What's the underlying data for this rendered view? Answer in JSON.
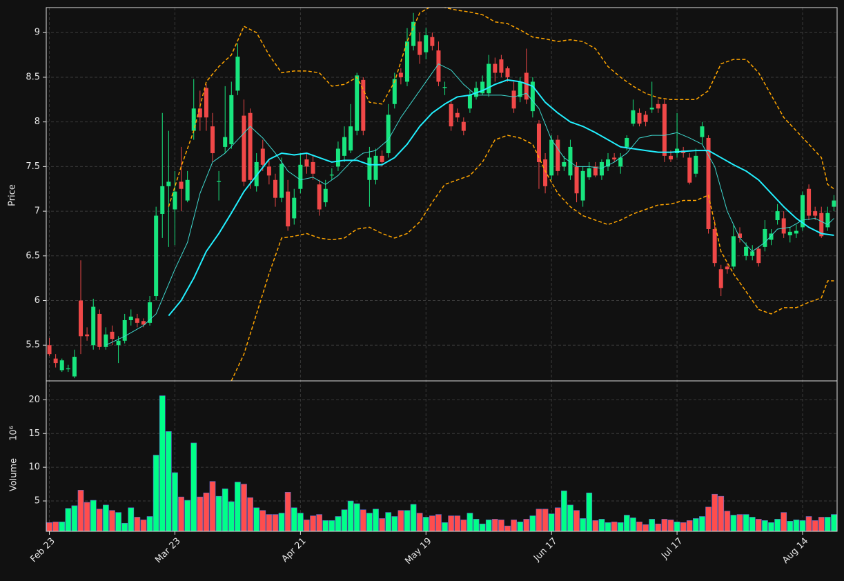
{
  "chart_data": [
    {
      "type": "candlestick",
      "ylabel": "Price",
      "xlim": [
        -0.5,
        125.5
      ],
      "xticks": [
        0,
        20,
        40,
        60,
        80,
        100,
        120
      ],
      "ylim": [
        5.1,
        9.28
      ],
      "yticks": [
        5.5,
        6.0,
        6.5,
        7.0,
        7.5,
        8.0,
        8.5,
        9.0
      ],
      "grid": true,
      "up_color": "#18e57e",
      "down_color": "#f04848",
      "open": [
        5.5,
        5.35,
        5.22,
        5.23,
        5.15,
        6.0,
        5.62,
        5.5,
        5.85,
        5.48,
        5.65,
        5.5,
        5.55,
        5.78,
        5.8,
        5.77,
        5.75,
        6.05,
        6.97,
        7.28,
        7.02,
        7.33,
        7.12,
        7.9,
        8.15,
        8.38,
        7.95,
        7.33,
        7.72,
        7.75,
        8.35,
        8.07,
        8.1,
        7.28,
        7.7,
        7.5,
        7.35,
        7.15,
        7.22,
        6.92,
        7.25,
        7.58,
        7.55,
        7.3,
        7.1,
        7.4,
        7.5,
        7.62,
        7.68,
        7.9,
        8.47,
        7.35,
        7.35,
        7.62,
        7.65,
        8.2,
        8.55,
        8.45,
        8.85,
        8.9,
        8.78,
        8.95,
        8.8,
        8.38,
        8.2,
        8.1,
        8.0,
        8.15,
        8.28,
        8.32,
        8.32,
        8.65,
        8.7,
        8.6,
        8.35,
        8.28,
        8.55,
        8.12,
        7.98,
        7.58,
        7.4,
        7.8,
        7.5,
        7.4,
        7.5,
        7.12,
        7.38,
        7.5,
        7.4,
        7.5,
        7.6,
        7.5,
        7.72,
        7.98,
        8.1,
        8.08,
        8.14,
        8.2,
        8.2,
        7.62,
        7.65,
        7.68,
        7.6,
        7.42,
        7.83,
        7.82,
        6.8,
        6.35,
        6.38,
        6.38,
        6.75,
        6.5,
        6.5,
        6.58,
        6.6,
        6.68,
        6.9,
        6.92,
        6.73,
        6.75,
        6.82,
        7.25,
        7.0,
        6.98,
        6.82,
        7.05
      ],
      "high": [
        5.58,
        5.4,
        5.35,
        5.28,
        5.45,
        6.45,
        5.7,
        6.02,
        5.9,
        5.7,
        5.72,
        5.6,
        5.85,
        5.9,
        5.85,
        5.8,
        6.05,
        7.05,
        8.1,
        7.9,
        7.45,
        7.72,
        7.45,
        8.48,
        8.35,
        8.42,
        8.1,
        7.45,
        8.4,
        8.45,
        8.88,
        8.25,
        8.15,
        7.65,
        7.8,
        7.58,
        7.42,
        7.6,
        7.35,
        7.25,
        7.65,
        7.65,
        7.62,
        7.35,
        7.35,
        7.48,
        7.78,
        7.95,
        8.2,
        8.55,
        8.5,
        7.72,
        7.7,
        7.68,
        8.2,
        8.55,
        8.6,
        9.05,
        9.22,
        9.0,
        9.05,
        9.0,
        8.9,
        8.45,
        8.25,
        8.15,
        8.05,
        8.35,
        8.45,
        8.52,
        8.75,
        8.72,
        8.75,
        8.62,
        8.45,
        8.5,
        8.82,
        8.5,
        8.02,
        7.65,
        7.85,
        7.85,
        7.62,
        7.8,
        7.55,
        7.5,
        7.55,
        7.55,
        7.58,
        7.65,
        7.65,
        7.65,
        7.85,
        8.25,
        8.15,
        8.12,
        8.45,
        8.25,
        8.25,
        7.68,
        8.1,
        7.72,
        7.65,
        7.7,
        8.0,
        7.85,
        6.9,
        6.4,
        6.42,
        6.85,
        6.82,
        6.65,
        6.62,
        6.6,
        6.9,
        6.8,
        7.08,
        7.0,
        6.82,
        6.85,
        7.22,
        7.3,
        7.05,
        7.05,
        7.05,
        7.18
      ],
      "low": [
        5.38,
        5.25,
        5.2,
        5.2,
        5.13,
        5.4,
        5.55,
        5.45,
        5.45,
        5.45,
        5.5,
        5.3,
        5.52,
        5.72,
        5.7,
        5.7,
        5.72,
        6.0,
        6.7,
        6.6,
        6.62,
        7.0,
        7.1,
        7.8,
        7.9,
        7.9,
        7.55,
        7.12,
        7.65,
        7.7,
        8.3,
        7.28,
        7.25,
        7.22,
        7.45,
        7.3,
        7.05,
        7.1,
        6.78,
        6.85,
        7.2,
        7.42,
        7.35,
        6.95,
        7.05,
        7.35,
        7.45,
        7.55,
        7.65,
        7.85,
        7.85,
        7.05,
        7.3,
        7.5,
        7.6,
        8.15,
        8.42,
        8.4,
        8.8,
        8.65,
        8.7,
        8.8,
        8.4,
        8.3,
        7.9,
        8.0,
        7.85,
        8.1,
        8.25,
        8.3,
        8.28,
        8.45,
        8.5,
        8.45,
        8.1,
        8.22,
        8.2,
        8.05,
        7.25,
        7.2,
        7.35,
        7.4,
        7.45,
        7.35,
        7.1,
        7.05,
        7.35,
        7.38,
        7.35,
        7.45,
        7.55,
        7.42,
        7.68,
        7.95,
        7.95,
        7.95,
        8.1,
        8.1,
        7.55,
        7.55,
        7.6,
        7.6,
        7.3,
        7.38,
        7.75,
        6.75,
        6.38,
        6.05,
        6.3,
        6.35,
        6.65,
        6.45,
        6.45,
        6.38,
        6.55,
        6.62,
        6.85,
        6.7,
        6.65,
        6.7,
        6.78,
        6.9,
        6.9,
        6.7,
        6.78,
        7.0
      ],
      "close": [
        5.4,
        5.3,
        5.33,
        5.24,
        5.37,
        5.6,
        5.6,
        5.93,
        5.48,
        5.62,
        5.57,
        5.55,
        5.78,
        5.82,
        5.75,
        5.73,
        5.98,
        6.95,
        7.28,
        7.33,
        7.22,
        7.25,
        7.35,
        8.15,
        8.05,
        8.05,
        7.65,
        7.34,
        7.83,
        8.3,
        8.73,
        7.33,
        7.35,
        7.55,
        7.52,
        7.4,
        7.15,
        7.53,
        6.83,
        7.15,
        7.52,
        7.5,
        7.42,
        7.02,
        7.25,
        7.41,
        7.7,
        7.83,
        7.95,
        8.52,
        7.9,
        7.6,
        7.62,
        7.55,
        8.08,
        8.48,
        8.5,
        8.9,
        9.12,
        8.75,
        8.97,
        8.85,
        8.45,
        8.39,
        7.95,
        8.05,
        7.9,
        8.3,
        8.38,
        8.45,
        8.65,
        8.55,
        8.55,
        8.5,
        8.15,
        8.45,
        8.25,
        8.45,
        7.55,
        7.28,
        7.8,
        7.45,
        7.55,
        7.72,
        7.2,
        7.45,
        7.48,
        7.4,
        7.55,
        7.58,
        7.58,
        7.6,
        7.82,
        8.13,
        7.98,
        8.0,
        8.16,
        8.15,
        7.62,
        7.58,
        7.7,
        7.65,
        7.32,
        7.62,
        7.95,
        6.8,
        6.42,
        6.14,
        6.35,
        6.72,
        6.7,
        6.6,
        6.55,
        6.42,
        6.8,
        6.75,
        7.0,
        6.75,
        6.77,
        6.78,
        7.18,
        6.95,
        6.95,
        6.72,
        6.98,
        7.12
      ],
      "lines": [
        {
          "color": "#3fd9d0",
          "width": 1,
          "dashed": false,
          "x": [
            9,
            12,
            15,
            17,
            20,
            22,
            24,
            26,
            28,
            30,
            32,
            34,
            36,
            38,
            40,
            42,
            44,
            46,
            48,
            50,
            52,
            54,
            56,
            58,
            60,
            62,
            64,
            66,
            68,
            70,
            72,
            74,
            76,
            78,
            80,
            82,
            84,
            86,
            88,
            90,
            92,
            94,
            96,
            98,
            100,
            102,
            104,
            106,
            108,
            110,
            112,
            114,
            116,
            118,
            120,
            122,
            124,
            125
          ],
          "values": [
            5.5,
            5.6,
            5.72,
            5.85,
            6.35,
            6.65,
            7.2,
            7.55,
            7.65,
            7.8,
            7.95,
            7.82,
            7.65,
            7.45,
            7.35,
            7.38,
            7.3,
            7.4,
            7.55,
            7.65,
            7.68,
            7.8,
            8.05,
            8.25,
            8.45,
            8.65,
            8.58,
            8.42,
            8.3,
            8.3,
            8.3,
            8.28,
            8.32,
            8.15,
            7.8,
            7.6,
            7.5,
            7.5,
            7.48,
            7.55,
            7.65,
            7.82,
            7.85,
            7.85,
            7.88,
            7.82,
            7.75,
            7.5,
            7.0,
            6.7,
            6.55,
            6.65,
            6.8,
            6.82,
            6.9,
            6.92,
            6.85,
            6.92
          ]
        },
        {
          "color": "#22f0ff",
          "width": 2,
          "dashed": false,
          "x": [
            19,
            21,
            23,
            25,
            27,
            29,
            31,
            33,
            35,
            37,
            39,
            41,
            43,
            45,
            47,
            49,
            51,
            53,
            55,
            57,
            59,
            61,
            63,
            65,
            67,
            69,
            71,
            73,
            75,
            77,
            79,
            81,
            83,
            85,
            87,
            89,
            91,
            93,
            95,
            97,
            99,
            101,
            103,
            105,
            107,
            109,
            111,
            113,
            115,
            117,
            119,
            121,
            123,
            125
          ],
          "values": [
            5.83,
            6.0,
            6.25,
            6.55,
            6.75,
            6.98,
            7.22,
            7.4,
            7.58,
            7.65,
            7.63,
            7.65,
            7.6,
            7.55,
            7.57,
            7.57,
            7.52,
            7.52,
            7.6,
            7.75,
            7.95,
            8.1,
            8.2,
            8.28,
            8.3,
            8.35,
            8.42,
            8.47,
            8.45,
            8.4,
            8.22,
            8.1,
            8.0,
            7.95,
            7.88,
            7.8,
            7.72,
            7.7,
            7.68,
            7.66,
            7.66,
            7.67,
            7.68,
            7.68,
            7.6,
            7.52,
            7.45,
            7.35,
            7.2,
            7.05,
            6.92,
            6.82,
            6.75,
            6.73
          ]
        },
        {
          "color": "#ffa500",
          "width": 1.5,
          "dashed": true,
          "x": [
            19,
            21,
            23,
            25,
            27,
            29,
            31,
            33,
            35,
            37,
            39,
            41,
            43,
            45,
            47,
            49,
            51,
            53,
            55,
            57,
            59,
            61,
            63,
            65,
            67,
            69,
            71,
            73,
            75,
            77,
            79,
            81,
            83,
            85,
            87,
            89,
            91,
            93,
            95,
            97,
            99,
            101,
            103,
            105,
            107,
            109,
            111,
            113,
            115,
            117,
            119,
            121,
            123,
            124,
            125
          ],
          "values": [
            7.05,
            7.5,
            7.9,
            8.45,
            8.62,
            8.75,
            9.07,
            9.0,
            8.75,
            8.55,
            8.57,
            8.57,
            8.55,
            8.4,
            8.42,
            8.5,
            8.22,
            8.2,
            8.45,
            8.9,
            9.22,
            9.3,
            9.28,
            9.25,
            9.23,
            9.2,
            9.12,
            9.1,
            9.03,
            8.95,
            8.93,
            8.9,
            8.92,
            8.9,
            8.82,
            8.62,
            8.5,
            8.4,
            8.32,
            8.27,
            8.25,
            8.25,
            8.25,
            8.35,
            8.65,
            8.7,
            8.7,
            8.55,
            8.3,
            8.05,
            7.9,
            7.75,
            7.6,
            7.3,
            7.25
          ]
        },
        {
          "color": "#ffa500",
          "width": 1.5,
          "dashed": true,
          "x": [
            29,
            31,
            33,
            35,
            37,
            39,
            41,
            43,
            45,
            47,
            49,
            51,
            53,
            55,
            57,
            59,
            61,
            63,
            65,
            67,
            69,
            71,
            73,
            75,
            77,
            79,
            81,
            83,
            85,
            87,
            89,
            91,
            93,
            95,
            97,
            99,
            101,
            103,
            105,
            107,
            109,
            111,
            113,
            115,
            117,
            119,
            121,
            123,
            124,
            125
          ],
          "values": [
            5.1,
            5.4,
            5.85,
            6.3,
            6.7,
            6.72,
            6.75,
            6.7,
            6.68,
            6.7,
            6.8,
            6.82,
            6.75,
            6.7,
            6.75,
            6.88,
            7.1,
            7.3,
            7.35,
            7.4,
            7.55,
            7.8,
            7.85,
            7.82,
            7.75,
            7.45,
            7.2,
            7.05,
            6.95,
            6.9,
            6.85,
            6.9,
            6.97,
            7.02,
            7.07,
            7.08,
            7.12,
            7.12,
            7.18,
            6.55,
            6.3,
            6.1,
            5.9,
            5.85,
            5.92,
            5.92,
            5.98,
            6.03,
            6.22,
            6.22
          ]
        }
      ]
    },
    {
      "type": "bar",
      "ylabel": "Volume",
      "scale_label": "10⁶",
      "categories": [
        "Feb 23",
        null,
        null,
        null,
        null,
        null,
        null,
        null,
        null,
        null,
        null,
        null,
        null,
        null,
        null,
        null,
        null,
        null,
        null,
        null,
        "Mar 23",
        null,
        null,
        null,
        null,
        null,
        null,
        null,
        null,
        null,
        null,
        null,
        null,
        null,
        null,
        null,
        null,
        null,
        null,
        null,
        "Apr 21",
        null,
        null,
        null,
        null,
        null,
        null,
        null,
        null,
        null,
        null,
        null,
        null,
        null,
        null,
        null,
        null,
        null,
        null,
        null,
        "May 19",
        null,
        null,
        null,
        null,
        null,
        null,
        null,
        null,
        null,
        null,
        null,
        null,
        null,
        null,
        null,
        null,
        null,
        null,
        null,
        "Jun 17",
        null,
        null,
        null,
        null,
        null,
        null,
        null,
        null,
        null,
        null,
        null,
        null,
        null,
        null,
        null,
        null,
        null,
        null,
        null,
        "Jul 17",
        null,
        null,
        null,
        null,
        null,
        null,
        null,
        null,
        null,
        null,
        null,
        null,
        null,
        null,
        null,
        null,
        null,
        null,
        null,
        "Aug 14",
        null,
        null,
        null,
        null,
        null
      ],
      "values": [
        1.8,
        1.9,
        1.9,
        3.9,
        4.3,
        6.6,
        4.8,
        5.1,
        3.8,
        4.4,
        3.6,
        3.3,
        1.7,
        4.0,
        2.6,
        2.2,
        2.7,
        11.8,
        20.6,
        15.3,
        9.2,
        5.6,
        5.1,
        13.6,
        5.6,
        6.2,
        7.9,
        5.7,
        6.8,
        4.9,
        7.8,
        7.5,
        5.5,
        4.0,
        3.6,
        3.0,
        3.0,
        3.2,
        6.3,
        4.0,
        3.2,
        2.2,
        2.8,
        3.0,
        2.1,
        2.1,
        2.7,
        3.7,
        5.0,
        4.6,
        3.7,
        3.2,
        3.8,
        2.4,
        3.3,
        2.7,
        3.6,
        3.6,
        4.5,
        3.2,
        2.6,
        2.8,
        3.0,
        1.8,
        2.8,
        2.8,
        2.2,
        3.2,
        2.3,
        1.6,
        2.2,
        2.3,
        2.2,
        1.3,
        2.2,
        1.9,
        2.3,
        2.8,
        3.8,
        3.8,
        3.1,
        4.0,
        6.5,
        4.4,
        3.6,
        2.4,
        6.2,
        2.1,
        2.3,
        1.8,
        1.9,
        1.8,
        2.9,
        2.5,
        1.9,
        1.5,
        2.3,
        1.6,
        2.3,
        2.2,
        1.9,
        1.8,
        2.1,
        2.4,
        2.7,
        4.1,
        6.0,
        5.7,
        3.5,
        2.9,
        3.0,
        3.0,
        2.6,
        2.3,
        2.1,
        1.8,
        2.3,
        3.3,
        2.0,
        2.2,
        2.1,
        2.7,
        2.1,
        2.6,
        2.6,
        3.0
      ],
      "up_color": "#00ff88",
      "down_color": "#ff4d4d",
      "ylim": [
        0.5,
        22.8
      ],
      "yticks": [
        5,
        10,
        15,
        20
      ],
      "grid": true
    }
  ]
}
